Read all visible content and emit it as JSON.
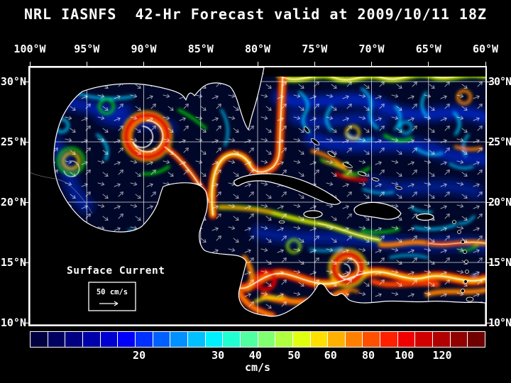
{
  "title": "NRL IASNFS  42-Hr Forecast valid at 2009/10/11 18Z",
  "axes": {
    "lon_labels": [
      "100°W",
      "95°W",
      "90°W",
      "85°W",
      "80°W",
      "75°W",
      "70°W",
      "65°W",
      "60°W"
    ],
    "lat_labels_left": [
      "30°N",
      "25°N",
      "20°N",
      "15°N",
      "10°N"
    ],
    "lat_labels_right": [
      "30°N",
      "25°N",
      "20°N",
      "15°N",
      "10°N"
    ]
  },
  "legend": {
    "title": "Surface Current",
    "scale_value": "50 cm/s"
  },
  "colorbar": {
    "units": "cm/s",
    "ticks": [
      {
        "label": "20",
        "pos_pct": 24
      },
      {
        "label": "30",
        "pos_pct": 41.3
      },
      {
        "label": "40",
        "pos_pct": 49.5
      },
      {
        "label": "50",
        "pos_pct": 58
      },
      {
        "label": "60",
        "pos_pct": 66
      },
      {
        "label": "80",
        "pos_pct": 74.3
      },
      {
        "label": "100",
        "pos_pct": 82.2
      },
      {
        "label": "120",
        "pos_pct": 90.5
      }
    ],
    "segment_colors": [
      "#000040",
      "#000060",
      "#000080",
      "#0000a8",
      "#0000d0",
      "#0000f8",
      "#0030ff",
      "#0060ff",
      "#0090ff",
      "#00c0ff",
      "#00f0ff",
      "#20ffd0",
      "#50ffa0",
      "#80ff70",
      "#b0ff40",
      "#e0ff10",
      "#ffe000",
      "#ffb000",
      "#ff8000",
      "#ff5000",
      "#ff2000",
      "#f00000",
      "#d00000",
      "#b00000",
      "#900000",
      "#700000"
    ]
  },
  "colors": {
    "background": "#000000",
    "text": "#ffffff",
    "ocean_deep": "#000728",
    "grid": "#ffffff",
    "current_high": "#e00000",
    "current_low": "#0030ff"
  }
}
